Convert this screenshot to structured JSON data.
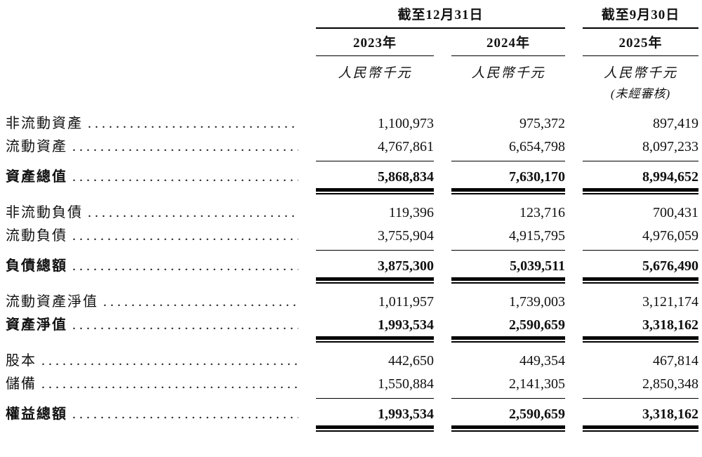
{
  "page": {
    "background_color": "#ffffff",
    "text_color": "#111111",
    "rule_color": "#000000"
  },
  "table": {
    "type": "table",
    "header": {
      "groups": [
        {
          "label": "截至12月31日"
        },
        {
          "label": "截至9月30日"
        }
      ],
      "years": [
        "2023年",
        "2024年",
        "2025年"
      ],
      "units": [
        "人民幣千元",
        "人民幣千元",
        "人民幣千元"
      ],
      "note": "(未經審核)"
    },
    "rows": [
      {
        "label": "非流動資產",
        "values": [
          "1,100,973",
          "975,372",
          "897,419"
        ],
        "is_total": false,
        "underline_below": false,
        "gap_before": false
      },
      {
        "label": "流動資產",
        "values": [
          "4,767,861",
          "6,654,798",
          "8,097,233"
        ],
        "is_total": false,
        "underline_below": true,
        "gap_before": false
      },
      {
        "label": "資產總值",
        "values": [
          "5,868,834",
          "7,630,170",
          "8,994,652"
        ],
        "is_total": true,
        "underline_below": false,
        "gap_before": false
      },
      {
        "label": "非流動負債",
        "values": [
          "119,396",
          "123,716",
          "700,431"
        ],
        "is_total": false,
        "underline_below": false,
        "gap_before": true
      },
      {
        "label": "流動負債",
        "values": [
          "3,755,904",
          "4,915,795",
          "4,976,059"
        ],
        "is_total": false,
        "underline_below": true,
        "gap_before": false
      },
      {
        "label": "負債總額",
        "values": [
          "3,875,300",
          "5,039,511",
          "5,676,490"
        ],
        "is_total": true,
        "underline_below": false,
        "gap_before": false
      },
      {
        "label": "流動資產淨值",
        "values": [
          "1,011,957",
          "1,739,003",
          "3,121,174"
        ],
        "is_total": false,
        "underline_below": false,
        "gap_before": true
      },
      {
        "label": "資產淨值",
        "values": [
          "1,993,534",
          "2,590,659",
          "3,318,162"
        ],
        "is_total": true,
        "underline_below": false,
        "gap_before": false
      },
      {
        "label": "股本",
        "values": [
          "442,650",
          "449,354",
          "467,814"
        ],
        "is_total": false,
        "underline_below": false,
        "gap_before": true
      },
      {
        "label": "儲備",
        "values": [
          "1,550,884",
          "2,141,305",
          "2,850,348"
        ],
        "is_total": false,
        "underline_below": true,
        "gap_before": false
      },
      {
        "label": "權益總額",
        "values": [
          "1,993,534",
          "2,590,659",
          "3,318,162"
        ],
        "is_total": true,
        "underline_below": false,
        "gap_before": false
      }
    ]
  }
}
